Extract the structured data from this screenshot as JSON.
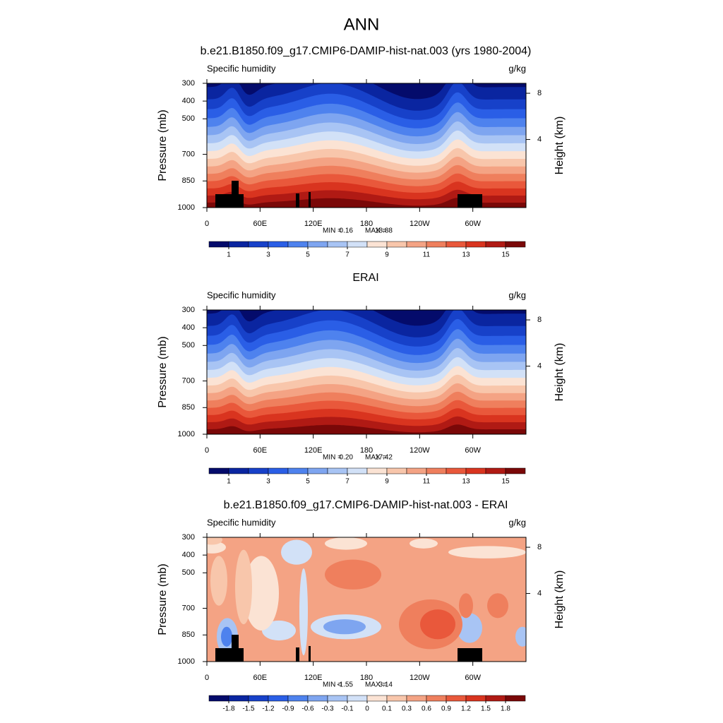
{
  "title": "ANN",
  "chart_data": [
    {
      "type": "contour",
      "title": "b.e21.B1850.f09_g17.CMIP6-DAMIP-hist-nat.003 (yrs 1980-2004)",
      "left_title": "Specific humidity",
      "right_title": "g/kg",
      "ylabel": "Pressure (mb)",
      "y2label": "Height (km)",
      "xlim": [
        0,
        360
      ],
      "xticks": [
        0,
        {
          "value": 60,
          "label": "60E"
        },
        {
          "value": 120,
          "label": "120E"
        },
        180,
        {
          "value": 240,
          "label": "120W"
        },
        {
          "value": 300,
          "label": "60W"
        }
      ],
      "ylim": [
        1000,
        300
      ],
      "yticks": [
        300,
        400,
        500,
        700,
        850,
        1000
      ],
      "y2ticks": [
        8,
        4
      ],
      "stats": [
        {
          "label": "MIN =",
          "value": 0.16
        },
        {
          "label": "MAX =",
          "value": 18.88
        }
      ],
      "levels": [
        1,
        2,
        3,
        4,
        5,
        6,
        7,
        8,
        9,
        10,
        11,
        12,
        13,
        14,
        15
      ],
      "colorbar_ticks": [
        1,
        3,
        5,
        7,
        9,
        11,
        13,
        15
      ],
      "colors": [
        "#040b6b",
        "#0a25a0",
        "#1741c9",
        "#2a5ee6",
        "#4e82ee",
        "#7ea5f0",
        "#a8c4f4",
        "#d2e1f7",
        "#fbe3d4",
        "#f8c6ab",
        "#f4a384",
        "#ef7f5d",
        "#e9583b",
        "#d9341f",
        "#b01a14",
        "#7a0808"
      ]
    },
    {
      "type": "contour",
      "title": "ERAI",
      "left_title": "Specific humidity",
      "right_title": "g/kg",
      "ylabel": "Pressure (mb)",
      "y2label": "Height (km)",
      "xlim": [
        0,
        360
      ],
      "xticks": [
        0,
        {
          "value": 60,
          "label": "60E"
        },
        {
          "value": 120,
          "label": "120E"
        },
        180,
        {
          "value": 240,
          "label": "120W"
        },
        {
          "value": 300,
          "label": "60W"
        }
      ],
      "ylim": [
        1000,
        300
      ],
      "yticks": [
        300,
        400,
        500,
        700,
        850,
        1000
      ],
      "y2ticks": [
        8,
        4
      ],
      "stats": [
        {
          "label": "MIN =",
          "value": 0.2,
          "value_label": "0.20"
        },
        {
          "label": "MAX =",
          "value": 17.42
        }
      ],
      "levels": [
        1,
        2,
        3,
        4,
        5,
        6,
        7,
        8,
        9,
        10,
        11,
        12,
        13,
        14,
        15
      ],
      "colorbar_ticks": [
        1,
        3,
        5,
        7,
        9,
        11,
        13,
        15
      ],
      "colors": [
        "#040b6b",
        "#0a25a0",
        "#1741c9",
        "#2a5ee6",
        "#4e82ee",
        "#7ea5f0",
        "#a8c4f4",
        "#d2e1f7",
        "#fbe3d4",
        "#f8c6ab",
        "#f4a384",
        "#ef7f5d",
        "#e9583b",
        "#d9341f",
        "#b01a14",
        "#7a0808"
      ]
    },
    {
      "type": "contour-diff",
      "title": "b.e21.B1850.f09_g17.CMIP6-DAMIP-hist-nat.003 - ERAI",
      "left_title": "Specific humidity",
      "right_title": "g/kg",
      "ylabel": "Pressure (mb)",
      "y2label": "Height (km)",
      "xlim": [
        0,
        360
      ],
      "xticks": [
        0,
        {
          "value": 60,
          "label": "60E"
        },
        {
          "value": 120,
          "label": "120E"
        },
        180,
        {
          "value": 240,
          "label": "120W"
        },
        {
          "value": 300,
          "label": "60W"
        }
      ],
      "ylim": [
        1000,
        300
      ],
      "yticks": [
        300,
        400,
        500,
        700,
        850,
        1000
      ],
      "y2ticks": [
        8,
        4
      ],
      "stats": [
        {
          "label": "MIN =",
          "value": -1.55
        },
        {
          "label": "MAX =",
          "value": 3.14
        }
      ],
      "levels": [
        -1.8,
        -1.5,
        -1.2,
        -0.9,
        -0.6,
        -0.3,
        -0.1,
        0,
        0.1,
        0.3,
        0.6,
        0.9,
        1.2,
        1.5,
        1.8
      ],
      "colors": [
        "#040b6b",
        "#0a25a0",
        "#1741c9",
        "#2a5ee6",
        "#4e82ee",
        "#7ea5f0",
        "#a8c4f4",
        "#d2e1f7",
        "#fbe3d4",
        "#f8c6ab",
        "#f4a384",
        "#ef7f5d",
        "#e9583b",
        "#d9341f",
        "#b01a14",
        "#7a0808"
      ]
    }
  ]
}
